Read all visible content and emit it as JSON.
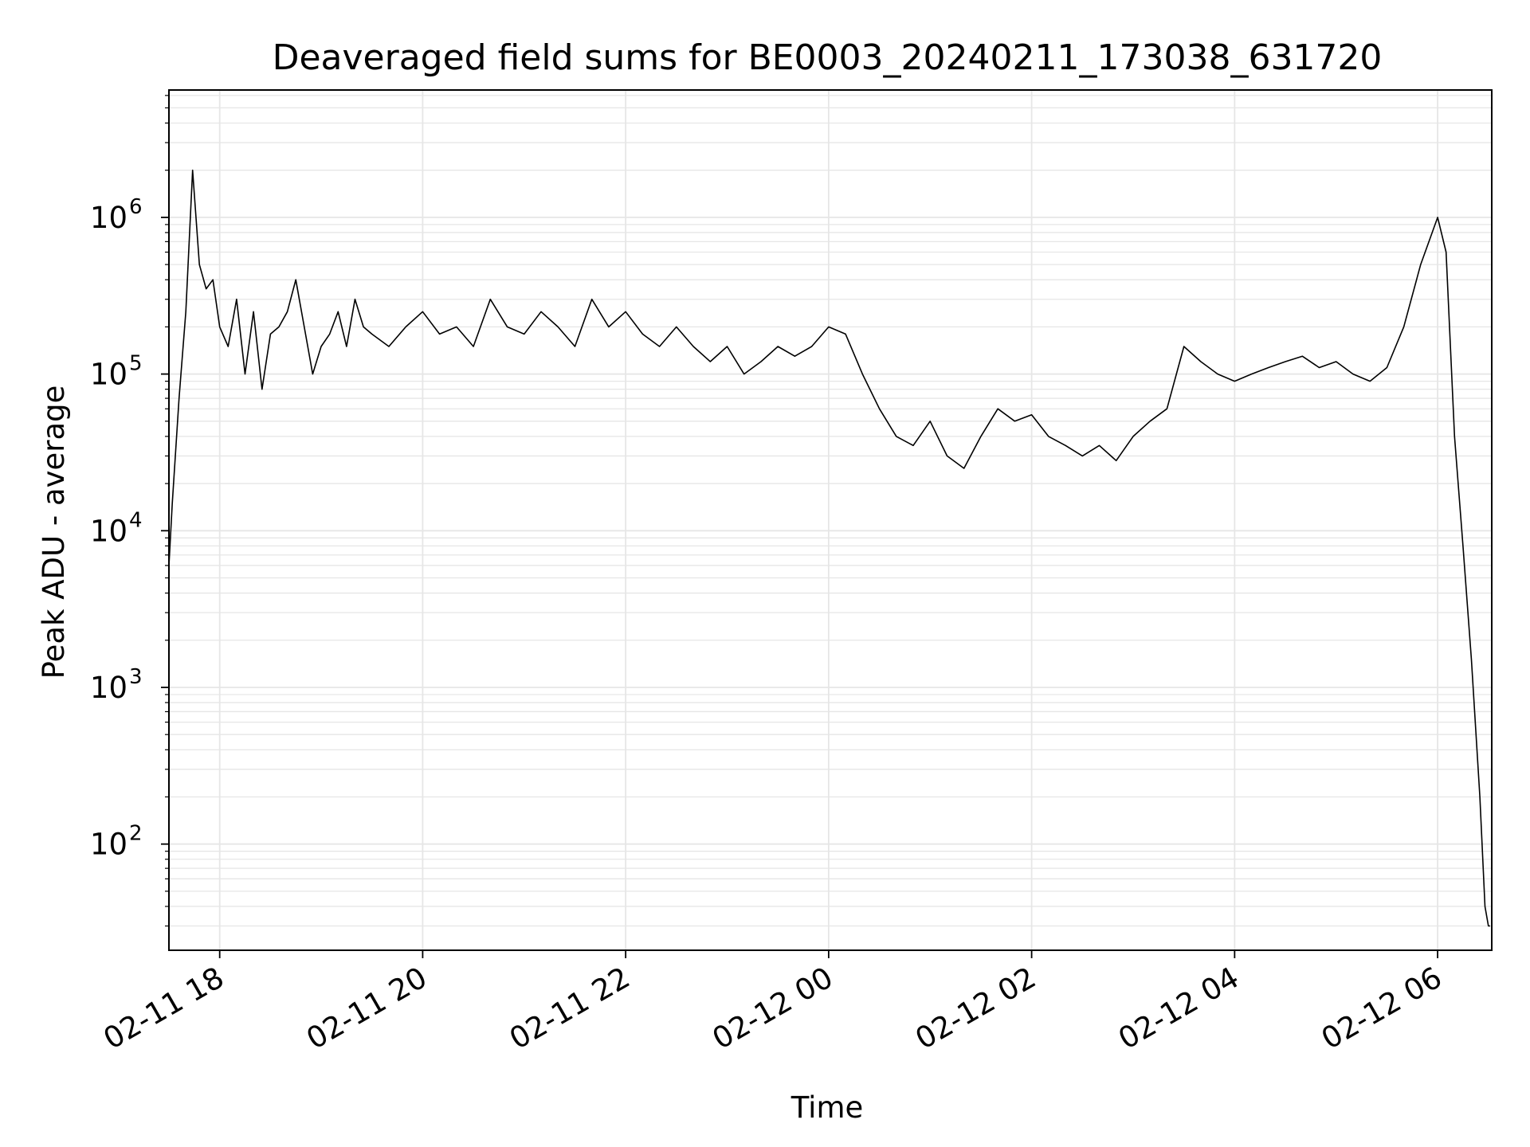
{
  "chart_data": {
    "type": "line",
    "title": "Deaveraged field sums for BE0003_20240211_173038_631720",
    "xlabel": "Time",
    "ylabel": "Peak ADU - average",
    "x_ticks": [
      "02-11 18",
      "02-11 20",
      "02-11 22",
      "02-12 00",
      "02-12 02",
      "02-12 04",
      "02-12 06"
    ],
    "y_ticks": [
      {
        "value": 100,
        "base": "10",
        "exp": "2"
      },
      {
        "value": 1000,
        "base": "10",
        "exp": "3"
      },
      {
        "value": 10000,
        "base": "10",
        "exp": "4"
      },
      {
        "value": 100000,
        "base": "10",
        "exp": "5"
      },
      {
        "value": 1000000,
        "base": "10",
        "exp": "6"
      }
    ],
    "xlim": [
      "2024-02-11 17:30",
      "2024-02-12 06:32"
    ],
    "ylim": [
      21,
      6500000
    ],
    "yscale": "log",
    "grid": true,
    "series_color": "#000000",
    "grid_color": "#e6e6e6",
    "series": [
      {
        "x": [
          "2024-02-11 17:30",
          "2024-02-11 17:32",
          "2024-02-11 17:36",
          "2024-02-11 17:40",
          "2024-02-11 17:44",
          "2024-02-11 17:48",
          "2024-02-11 17:52",
          "2024-02-11 17:56",
          "2024-02-11 18:00",
          "2024-02-11 18:05",
          "2024-02-11 18:10",
          "2024-02-11 18:15",
          "2024-02-11 18:20",
          "2024-02-11 18:25",
          "2024-02-11 18:30",
          "2024-02-11 18:35",
          "2024-02-11 18:40",
          "2024-02-11 18:45",
          "2024-02-11 18:50",
          "2024-02-11 18:55",
          "2024-02-11 19:00",
          "2024-02-11 19:05",
          "2024-02-11 19:10",
          "2024-02-11 19:15",
          "2024-02-11 19:20",
          "2024-02-11 19:25",
          "2024-02-11 19:30",
          "2024-02-11 19:40",
          "2024-02-11 19:50",
          "2024-02-11 20:00",
          "2024-02-11 20:10",
          "2024-02-11 20:20",
          "2024-02-11 20:30",
          "2024-02-11 20:40",
          "2024-02-11 20:50",
          "2024-02-11 21:00",
          "2024-02-11 21:10",
          "2024-02-11 21:20",
          "2024-02-11 21:30",
          "2024-02-11 21:40",
          "2024-02-11 21:50",
          "2024-02-11 22:00",
          "2024-02-11 22:10",
          "2024-02-11 22:20",
          "2024-02-11 22:30",
          "2024-02-11 22:40",
          "2024-02-11 22:50",
          "2024-02-11 23:00",
          "2024-02-11 23:10",
          "2024-02-11 23:20",
          "2024-02-11 23:30",
          "2024-02-11 23:40",
          "2024-02-11 23:50",
          "2024-02-12 00:00",
          "2024-02-12 00:10",
          "2024-02-12 00:20",
          "2024-02-12 00:30",
          "2024-02-12 00:40",
          "2024-02-12 00:50",
          "2024-02-12 01:00",
          "2024-02-12 01:10",
          "2024-02-12 01:20",
          "2024-02-12 01:30",
          "2024-02-12 01:40",
          "2024-02-12 01:50",
          "2024-02-12 02:00",
          "2024-02-12 02:10",
          "2024-02-12 02:20",
          "2024-02-12 02:30",
          "2024-02-12 02:40",
          "2024-02-12 02:50",
          "2024-02-12 03:00",
          "2024-02-12 03:10",
          "2024-02-12 03:20",
          "2024-02-12 03:30",
          "2024-02-12 03:40",
          "2024-02-12 03:50",
          "2024-02-12 04:00",
          "2024-02-12 04:10",
          "2024-02-12 04:20",
          "2024-02-12 04:30",
          "2024-02-12 04:40",
          "2024-02-12 04:50",
          "2024-02-12 05:00",
          "2024-02-12 05:10",
          "2024-02-12 05:20",
          "2024-02-12 05:30",
          "2024-02-12 05:40",
          "2024-02-12 05:50",
          "2024-02-12 06:00",
          "2024-02-12 06:05",
          "2024-02-12 06:10",
          "2024-02-12 06:15",
          "2024-02-12 06:20",
          "2024-02-12 06:25",
          "2024-02-12 06:28",
          "2024-02-12 06:30",
          "2024-02-12 06:31"
        ],
        "y": [
          6000,
          15000,
          70000,
          250000,
          2000000,
          500000,
          350000,
          400000,
          200000,
          150000,
          300000,
          100000,
          250000,
          80000,
          180000,
          200000,
          250000,
          400000,
          200000,
          100000,
          150000,
          180000,
          250000,
          150000,
          300000,
          200000,
          180000,
          150000,
          200000,
          250000,
          180000,
          200000,
          150000,
          300000,
          200000,
          180000,
          250000,
          200000,
          150000,
          300000,
          200000,
          250000,
          180000,
          150000,
          200000,
          150000,
          120000,
          150000,
          100000,
          120000,
          150000,
          130000,
          150000,
          200000,
          180000,
          100000,
          60000,
          40000,
          35000,
          50000,
          30000,
          25000,
          40000,
          60000,
          50000,
          55000,
          40000,
          35000,
          30000,
          35000,
          28000,
          40000,
          50000,
          60000,
          150000,
          120000,
          100000,
          90000,
          100000,
          110000,
          120000,
          130000,
          110000,
          120000,
          100000,
          90000,
          110000,
          200000,
          500000,
          1000000,
          600000,
          40000,
          8000,
          1500,
          200,
          40,
          30,
          30
        ]
      }
    ]
  }
}
